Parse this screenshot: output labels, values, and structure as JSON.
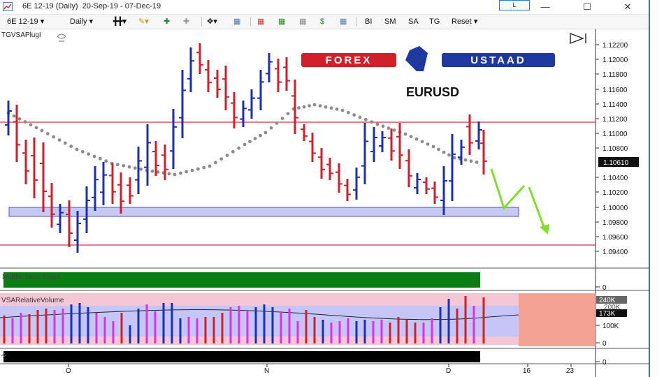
{
  "window": {
    "title": "6E 12-19 (Daily)  20-Sep-19 - 07-Dec-19",
    "layout_button": "L"
  },
  "toolbar": {
    "instrument": "6E 12-19",
    "interval": "Daily",
    "buttons": [
      "BI",
      "SM",
      "SA",
      "TG"
    ],
    "reset": "Reset"
  },
  "chart": {
    "indicator_label": "TGVSAPlugI",
    "symbol": "EURUSD",
    "logo_left": "FOREX",
    "logo_right": "USTAAD",
    "price_axis": [
      "1.12200",
      "1.12000",
      "1.11800",
      "1.11600",
      "1.11400",
      "1.11200",
      "1.11000",
      "1.10800",
      "1.10610",
      "1.10400",
      "1.10200",
      "1.10000",
      "1.09800",
      "1.09600",
      "1.09400"
    ],
    "last_price": "1.10610"
  },
  "panels": {
    "trend_label": "Middle Term Trend",
    "trend_axis": "0",
    "volume_label": "VSARelativeVolume",
    "volume_axis": [
      "240K",
      "200K",
      "173K",
      "100K",
      "0"
    ],
    "bottom_axis": "0"
  },
  "time_axis": [
    "O",
    "N",
    "D",
    "16",
    "23"
  ],
  "colors": {
    "up_bar": "#1b2fb4",
    "down_bar": "#d01e2a",
    "magenta_bar": "#e030e0",
    "trend_green": "#0a7d12",
    "level_line": "#d0344a",
    "zone_fill": "#c7c9f4",
    "projection": "#7ee02b"
  }
}
